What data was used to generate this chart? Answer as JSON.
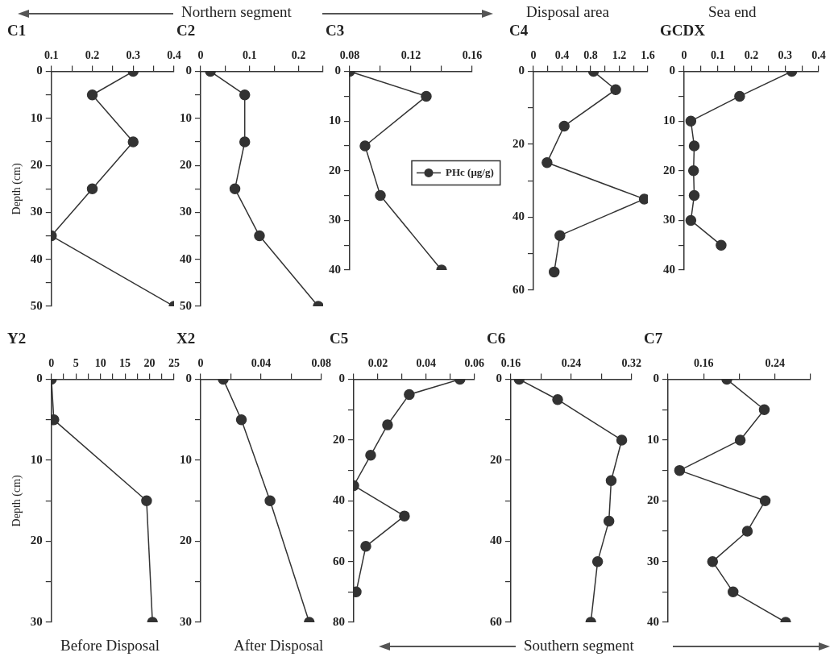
{
  "chart_data": [
    {
      "type": "line",
      "title": "C1",
      "ylabel": "Depth (cm)",
      "marker": "circle",
      "grid": false,
      "series": [
        {
          "color": "#333333",
          "x": [
            0.3,
            0.2,
            0.3,
            0.2,
            0.1,
            0.4
          ],
          "values": [
            0,
            5,
            15,
            25,
            35,
            50
          ]
        }
      ],
      "xlim": [
        0.1,
        0.4
      ],
      "xticks": [
        0.1,
        {
          "value": 0.15,
          "label": null
        },
        0.2,
        {
          "value": 0.25,
          "label": null
        },
        0.3,
        {
          "value": 0.35,
          "label": null
        },
        0.4
      ],
      "ylim": [
        50,
        0
      ],
      "yticks": [
        0,
        {
          "value": 5,
          "label": null
        },
        10,
        {
          "value": 15,
          "label": null
        },
        20,
        {
          "value": 25,
          "label": null
        },
        30,
        {
          "value": 35,
          "label": null
        },
        40,
        {
          "value": 45,
          "label": null
        },
        50
      ]
    },
    {
      "type": "line",
      "title": "C2",
      "marker": "circle",
      "grid": false,
      "annotations": [
        "Northern segment"
      ],
      "series": [
        {
          "color": "#333333",
          "x": [
            0.02,
            0.09,
            0.09,
            0.07,
            0.12,
            0.24
          ],
          "values": [
            0,
            5,
            15,
            25,
            35,
            50
          ]
        }
      ],
      "xlim": [
        0,
        0.25
      ],
      "xticks": [
        0,
        {
          "value": 0.05,
          "label": null
        },
        0.1,
        {
          "value": 0.15,
          "label": null
        },
        0.2,
        {
          "value": 0.25,
          "label": null
        }
      ],
      "ylim": [
        50,
        0
      ],
      "yticks": [
        0,
        {
          "value": 5,
          "label": null
        },
        10,
        {
          "value": 15,
          "label": null
        },
        20,
        {
          "value": 25,
          "label": null
        },
        30,
        {
          "value": 35,
          "label": null
        },
        40,
        {
          "value": 45,
          "label": null
        },
        50
      ]
    },
    {
      "type": "line",
      "title": "C3",
      "marker": "circle",
      "grid": false,
      "legend": "right",
      "series": [
        {
          "name": "PHc (μg/g)",
          "color": "#333333",
          "x": [
            0.08,
            0.13,
            0.09,
            0.1,
            0.14
          ],
          "values": [
            0,
            5,
            15,
            25,
            40
          ]
        }
      ],
      "xlim": [
        0.08,
        0.16
      ],
      "xticks": [
        0.08,
        {
          "value": 0.1,
          "label": null
        },
        0.12,
        {
          "value": 0.14,
          "label": null
        },
        0.16
      ],
      "ylim": [
        40,
        0
      ],
      "yticks": [
        0,
        {
          "value": 5,
          "label": null
        },
        10,
        {
          "value": 15,
          "label": null
        },
        20,
        {
          "value": 25,
          "label": null
        },
        30,
        {
          "value": 35,
          "label": null
        },
        40
      ]
    },
    {
      "type": "line",
      "title": "C4",
      "marker": "circle",
      "grid": false,
      "annotations": [
        "Disposal area"
      ],
      "series": [
        {
          "color": "#333333",
          "x": [
            0.84,
            1.15,
            0.43,
            0.19,
            1.55,
            0.37,
            0.29
          ],
          "values": [
            0,
            5,
            15,
            25,
            35,
            45,
            55
          ]
        }
      ],
      "xlim": [
        0,
        1.6
      ],
      "xticks": [
        0,
        {
          "value": 0.2,
          "label": null
        },
        0.4,
        {
          "value": 0.6,
          "label": null
        },
        0.8,
        {
          "value": 1,
          "label": null
        },
        1.2,
        {
          "value": 1.4,
          "label": null
        },
        1.6
      ],
      "ylim": [
        60,
        0
      ],
      "yticks": [
        0,
        {
          "value": 10,
          "label": null
        },
        20,
        {
          "value": 30,
          "label": null
        },
        40,
        {
          "value": 50,
          "label": null
        },
        60
      ]
    },
    {
      "type": "line",
      "title": "GCDX",
      "marker": "circle",
      "grid": false,
      "annotations": [
        "Sea end"
      ],
      "series": [
        {
          "color": "#333333",
          "x": [
            0.32,
            0.165,
            0.02,
            0.03,
            0.028,
            0.03,
            0.02,
            0.11
          ],
          "values": [
            0,
            5,
            10,
            15,
            20,
            25,
            30,
            35
          ]
        }
      ],
      "xlim": [
        0,
        0.4
      ],
      "xticks": [
        0,
        {
          "value": 0.05,
          "label": null
        },
        0.1,
        {
          "value": 0.15,
          "label": null
        },
        0.2,
        {
          "value": 0.25,
          "label": null
        },
        0.3,
        {
          "value": 0.35,
          "label": null
        },
        0.4
      ],
      "ylim": [
        40,
        0
      ],
      "yticks": [
        0,
        {
          "value": 5,
          "label": null
        },
        10,
        {
          "value": 15,
          "label": null
        },
        20,
        {
          "value": 25,
          "label": null
        },
        30,
        {
          "value": 35,
          "label": null
        },
        40
      ]
    },
    {
      "type": "line",
      "title": "Y2",
      "ylabel": "Depth (cm)",
      "marker": "circle",
      "grid": false,
      "annotations": [
        "Before Disposal"
      ],
      "series": [
        {
          "color": "#333333",
          "x": [
            0,
            0.5,
            19.4,
            20.6
          ],
          "values": [
            0,
            5,
            15,
            30
          ]
        }
      ],
      "xlim": [
        0,
        25
      ],
      "xticks": [
        0,
        {
          "value": 2.5,
          "label": null
        },
        5,
        {
          "value": 7.5,
          "label": null
        },
        10,
        {
          "value": 12.5,
          "label": null
        },
        15,
        {
          "value": 17.5,
          "label": null
        },
        20,
        {
          "value": 22.5,
          "label": null
        },
        25
      ],
      "ylim": [
        30,
        0
      ],
      "yticks": [
        0,
        {
          "value": 5,
          "label": null
        },
        10,
        {
          "value": 15,
          "label": null
        },
        20,
        {
          "value": 25,
          "label": null
        },
        30
      ]
    },
    {
      "type": "line",
      "title": "X2",
      "marker": "circle",
      "grid": false,
      "annotations": [
        "After Disposal"
      ],
      "series": [
        {
          "color": "#333333",
          "x": [
            0.015,
            0.027,
            0.046,
            0.072
          ],
          "values": [
            0,
            5,
            15,
            30
          ]
        }
      ],
      "xlim": [
        0,
        0.08
      ],
      "xticks": [
        0,
        {
          "value": 0.02,
          "label": null
        },
        0.04,
        {
          "value": 0.06,
          "label": null
        },
        0.08
      ],
      "ylim": [
        30,
        0
      ],
      "yticks": [
        0,
        {
          "value": 5,
          "label": null
        },
        10,
        {
          "value": 15,
          "label": null
        },
        20,
        {
          "value": 25,
          "label": null
        },
        30
      ]
    },
    {
      "type": "line",
      "title": "C5",
      "marker": "circle",
      "grid": false,
      "series": [
        {
          "color": "#333333",
          "x": [
            0.054,
            0.033,
            0.024,
            0.017,
            0.01,
            0.031,
            0.015,
            0.011
          ],
          "values": [
            0,
            5,
            15,
            25,
            35,
            45,
            55,
            70
          ]
        }
      ],
      "xlim": [
        0.01,
        0.06
      ],
      "xticks": [
        {
          "value": 0.01,
          "label": null
        },
        0.02,
        {
          "value": 0.03,
          "label": null
        },
        0.04,
        {
          "value": 0.05,
          "label": null
        },
        0.06
      ],
      "ylim": [
        80,
        0
      ],
      "yticks": [
        0,
        {
          "value": 10,
          "label": null
        },
        20,
        {
          "value": 30,
          "label": null
        },
        40,
        {
          "value": 50,
          "label": null
        },
        60,
        {
          "value": 70,
          "label": null
        },
        80
      ]
    },
    {
      "type": "line",
      "title": "C6",
      "marker": "circle",
      "grid": false,
      "annotations": [
        "Southern segment"
      ],
      "series": [
        {
          "color": "#333333",
          "x": [
            0.171,
            0.222,
            0.307,
            0.293,
            0.29,
            0.275,
            0.266
          ],
          "values": [
            0,
            5,
            15,
            25,
            35,
            45,
            60
          ]
        }
      ],
      "xlim": [
        0.16,
        0.32
      ],
      "xticks": [
        0.16,
        {
          "value": 0.2,
          "label": null
        },
        0.24,
        {
          "value": 0.28,
          "label": null
        },
        0.32
      ],
      "ylim": [
        60,
        0
      ],
      "yticks": [
        0,
        {
          "value": 10,
          "label": null
        },
        20,
        {
          "value": 30,
          "label": null
        },
        40,
        {
          "value": 50,
          "label": null
        },
        60
      ]
    },
    {
      "type": "line",
      "title": "C7",
      "marker": "circle",
      "grid": false,
      "series": [
        {
          "color": "#333333",
          "x": [
            0.186,
            0.228,
            0.201,
            0.133,
            0.229,
            0.209,
            0.17,
            0.193,
            0.252
          ],
          "values": [
            0,
            5,
            10,
            15,
            20,
            25,
            30,
            35,
            40
          ]
        }
      ],
      "xlim": [
        0.12,
        0.28
      ],
      "xticks": [
        {
          "value": 0.12,
          "label": null
        },
        0.16,
        {
          "value": 0.2,
          "label": null
        },
        0.24,
        {
          "value": 0.28,
          "label": null
        }
      ],
      "ylim": [
        40,
        0
      ],
      "yticks": [
        0,
        {
          "value": 5,
          "label": null
        },
        10,
        {
          "value": 15,
          "label": null
        },
        20,
        {
          "value": 25,
          "label": null
        },
        30,
        {
          "value": 35,
          "label": null
        },
        40
      ]
    }
  ]
}
